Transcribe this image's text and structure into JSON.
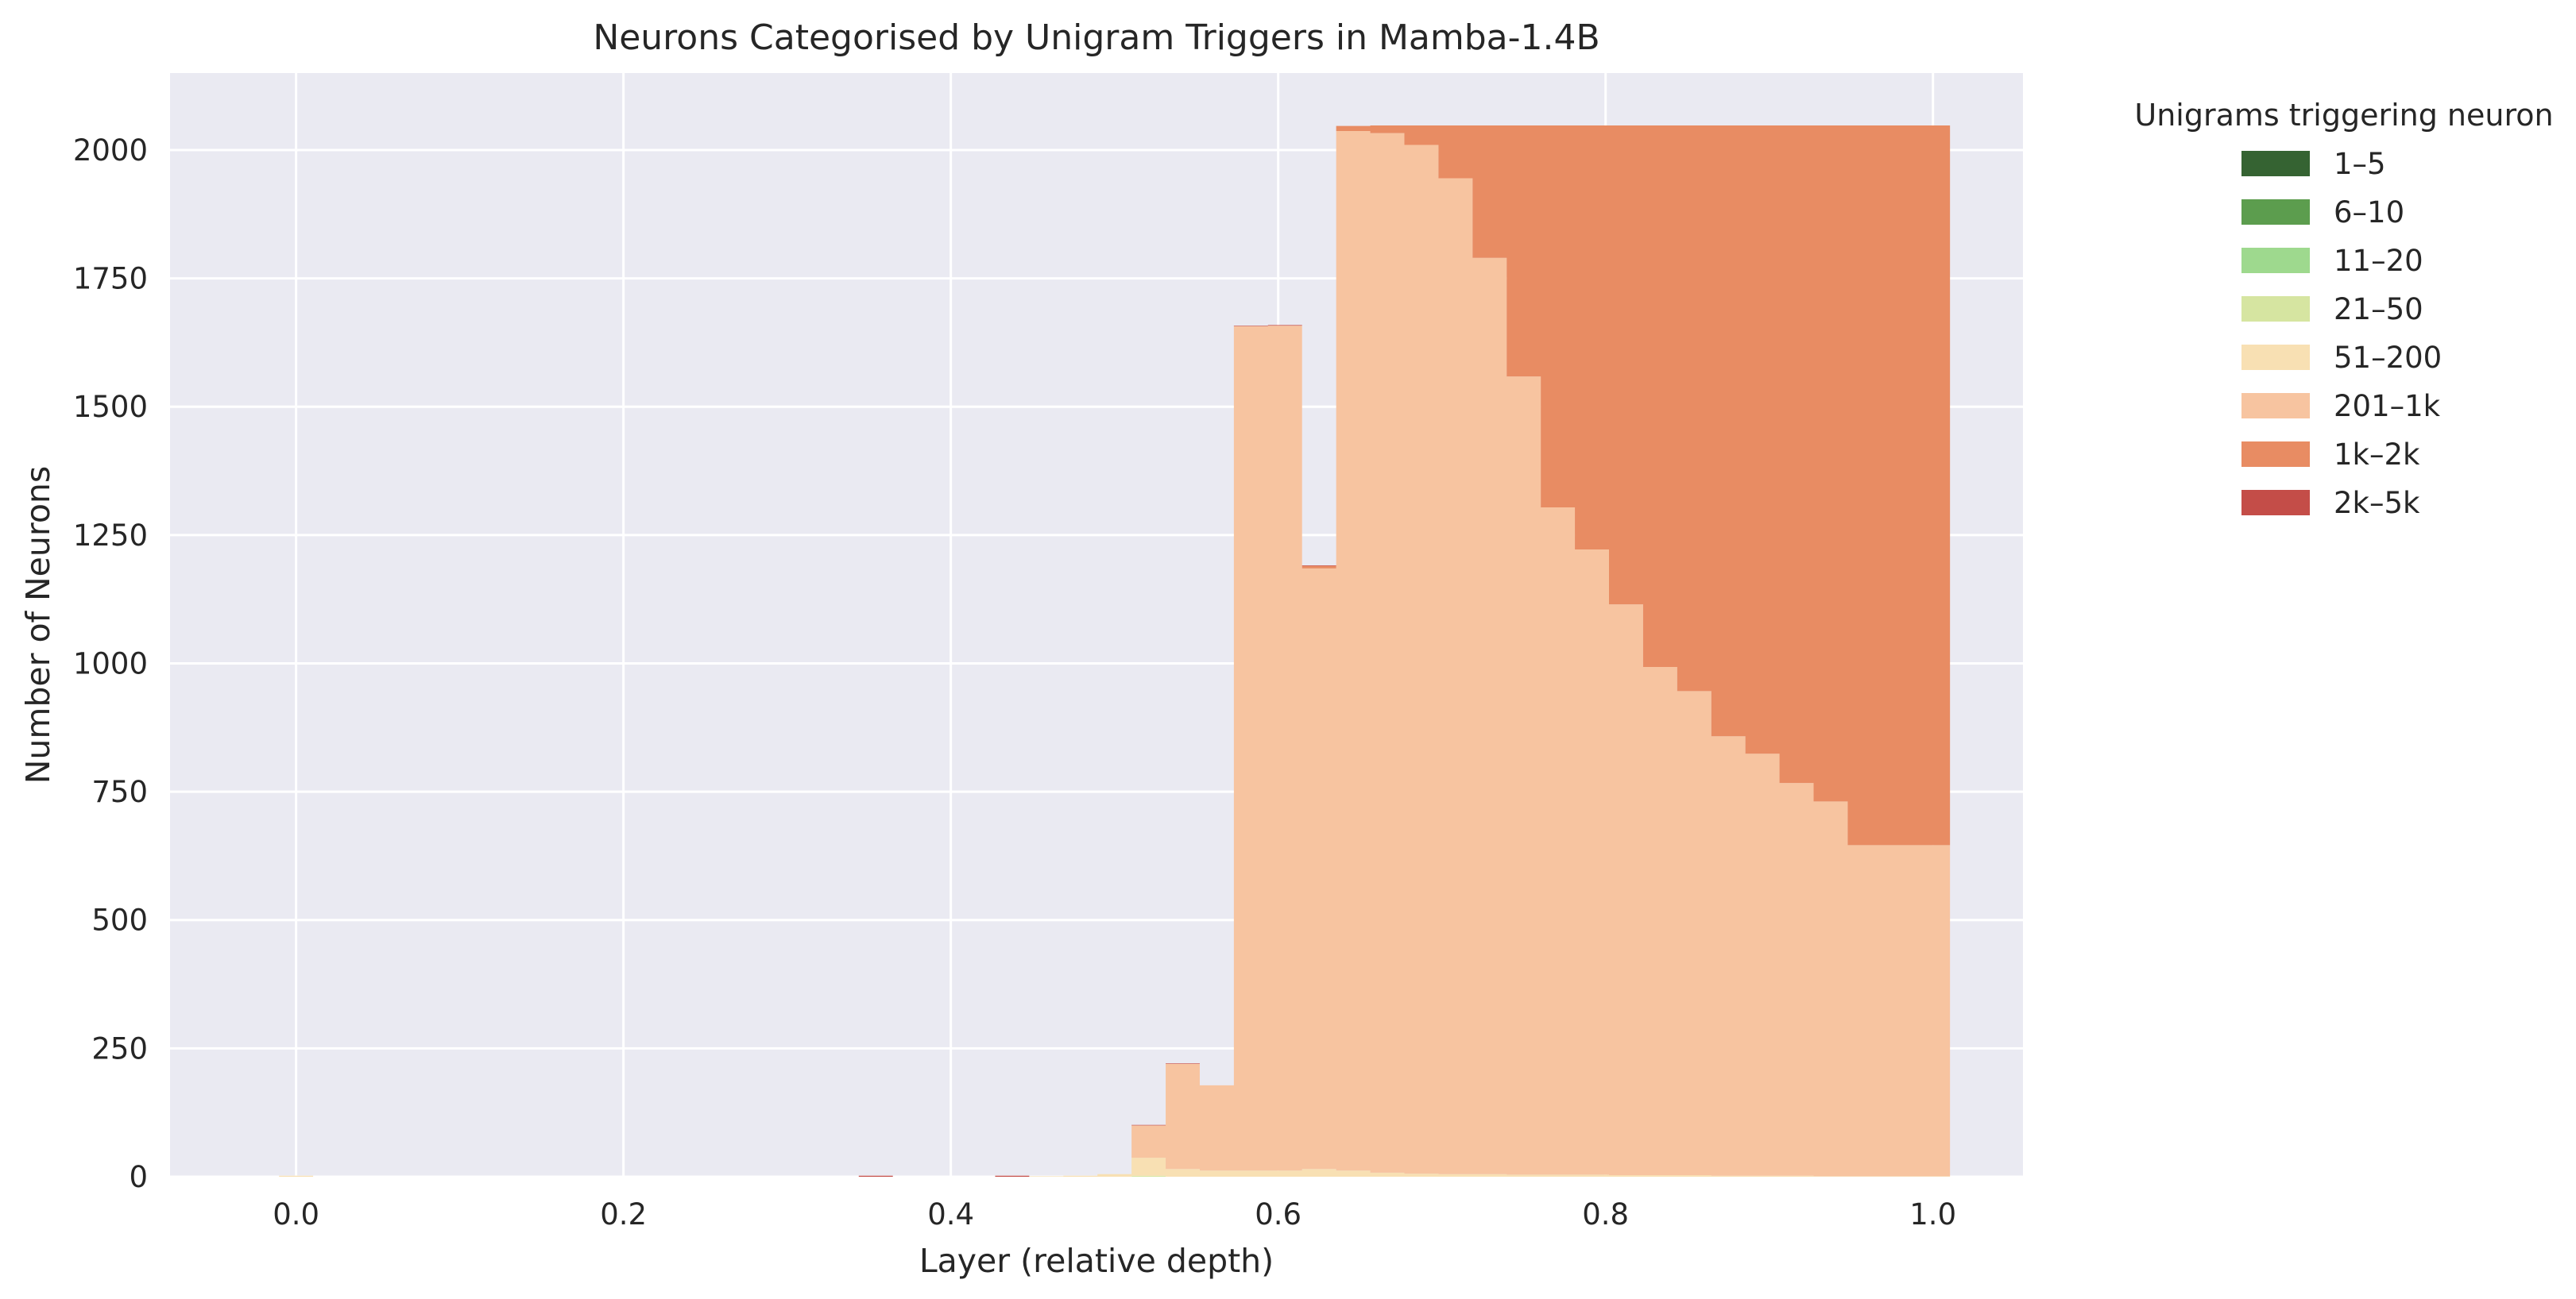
{
  "chart_data": {
    "type": "area",
    "title": "Neurons Categorised by Unigram Triggers in Mamba-1.4B",
    "xlabel": "Layer (relative depth)",
    "ylabel": "Number of Neurons",
    "xlim": [
      -0.077,
      1.055
    ],
    "ylim": [
      0,
      2150
    ],
    "xticks": [
      0.0,
      0.2,
      0.4,
      0.6,
      0.8,
      1.0
    ],
    "xtick_labels": [
      "0.0",
      "0.2",
      "0.4",
      "0.6",
      "0.8",
      "1.0"
    ],
    "yticks": [
      0,
      250,
      500,
      750,
      1000,
      1250,
      1500,
      1750,
      2000
    ],
    "ytick_labels": [
      "0",
      "250",
      "500",
      "750",
      "1000",
      "1250",
      "1500",
      "1750",
      "2000"
    ],
    "grid": true,
    "stacked": true,
    "step": true,
    "x": [
      0.0,
      0.020833,
      0.041667,
      0.0625,
      0.083333,
      0.104167,
      0.125,
      0.145833,
      0.166667,
      0.1875,
      0.208333,
      0.229167,
      0.25,
      0.270833,
      0.291667,
      0.3125,
      0.333333,
      0.354167,
      0.375,
      0.395833,
      0.416667,
      0.4375,
      0.458333,
      0.479167,
      0.5,
      0.520833,
      0.541667,
      0.5625,
      0.583333,
      0.604167,
      0.625,
      0.645833,
      0.666667,
      0.6875,
      0.708333,
      0.729167,
      0.75,
      0.770833,
      0.791667,
      0.8125,
      0.833333,
      0.854167,
      0.875,
      0.895833,
      0.916667,
      0.9375,
      0.958333,
      0.979167,
      1.0
    ],
    "legend": {
      "title": "Unigrams triggering neuron",
      "placement": "outside-right"
    },
    "colors": [
      "#356332",
      "#5c9d4e",
      "#9ed98e",
      "#d6e5a1",
      "#f8e0b3",
      "#f7c4a0",
      "#e88c63",
      "#c44d48"
    ],
    "series": [
      {
        "name": "1–5",
        "values": [
          0,
          0,
          0,
          0,
          0,
          0,
          0,
          0,
          0,
          0,
          0,
          0,
          0,
          0,
          0,
          0,
          0,
          0,
          0,
          0,
          0,
          0,
          0,
          0,
          0,
          0,
          0,
          0,
          0,
          0,
          0,
          0,
          0,
          0,
          0,
          0,
          0,
          0,
          0,
          0,
          0,
          0,
          0,
          0,
          0,
          0,
          0,
          0,
          0
        ]
      },
      {
        "name": "6–10",
        "values": [
          0,
          0,
          0,
          0,
          0,
          0,
          0,
          0,
          0,
          0,
          0,
          0,
          0,
          0,
          0,
          0,
          0,
          0,
          0,
          0,
          0,
          0,
          0,
          0,
          0,
          0,
          0,
          0,
          0,
          0,
          0,
          0,
          0,
          0,
          0,
          0,
          0,
          0,
          0,
          0,
          0,
          0,
          0,
          0,
          0,
          0,
          0,
          0,
          0
        ]
      },
      {
        "name": "11–20",
        "values": [
          0,
          0,
          0,
          0,
          0,
          0,
          0,
          0,
          0,
          0,
          0,
          0,
          0,
          0,
          0,
          0,
          0,
          0,
          0,
          0,
          0,
          0,
          0,
          0,
          0,
          0,
          0,
          0,
          0,
          0,
          0,
          0,
          0,
          0,
          0,
          0,
          0,
          0,
          0,
          0,
          0,
          0,
          0,
          0,
          0,
          0,
          0,
          0,
          0
        ]
      },
      {
        "name": "21–50",
        "values": [
          0,
          0,
          0,
          0,
          0,
          0,
          0,
          0,
          0,
          0,
          0,
          0,
          0,
          0,
          0,
          0,
          0,
          0,
          0,
          0,
          0,
          0,
          0,
          0,
          0,
          2,
          0,
          0,
          0,
          0,
          0,
          0,
          0,
          0,
          0,
          0,
          0,
          0,
          0,
          0,
          0,
          0,
          0,
          0,
          0,
          0,
          0,
          0,
          0
        ]
      },
      {
        "name": "51–200",
        "values": [
          2,
          0,
          0,
          0,
          0,
          0,
          0,
          0,
          0,
          0,
          0,
          0,
          0,
          0,
          0,
          0,
          0,
          0,
          0,
          0,
          0,
          0,
          1,
          2,
          5,
          35,
          15,
          12,
          12,
          12,
          15,
          12,
          8,
          6,
          5,
          5,
          4,
          4,
          4,
          3,
          3,
          3,
          2,
          2,
          2,
          1,
          1,
          1,
          1
        ]
      },
      {
        "name": "201–1k",
        "values": [
          0,
          0,
          0,
          0,
          0,
          0,
          0,
          0,
          0,
          0,
          0,
          0,
          0,
          0,
          0,
          0,
          0,
          0,
          0,
          0,
          0,
          0,
          0,
          0,
          0,
          63,
          205,
          166,
          1645,
          1646,
          1170,
          2025,
          2025,
          2004,
          1940,
          1785,
          1555,
          1300,
          1218,
          1112,
          990,
          943,
          856,
          822,
          765,
          730,
          645,
          645,
          645
        ]
      },
      {
        "name": "1k–2k",
        "values": [
          0,
          0,
          0,
          0,
          0,
          0,
          0,
          0,
          0,
          0,
          0,
          0,
          0,
          0,
          0,
          0,
          0,
          0,
          0,
          0,
          0,
          0,
          0,
          0,
          0,
          0,
          0,
          0,
          0,
          0,
          5,
          10,
          15,
          38,
          103,
          258,
          489,
          744,
          826,
          933,
          1055,
          1102,
          1190,
          1224,
          1281,
          1317,
          1402,
          1402,
          1402
        ]
      },
      {
        "name": "2k–5k",
        "values": [
          0,
          0,
          0,
          0,
          0,
          0,
          0,
          0,
          0,
          0,
          0,
          0,
          0,
          0,
          0,
          0,
          0,
          2,
          0,
          0,
          0,
          2,
          0,
          0,
          0,
          1,
          1,
          0,
          1,
          1,
          1,
          0,
          0,
          0,
          0,
          0,
          0,
          0,
          0,
          0,
          0,
          0,
          0,
          0,
          0,
          0,
          0,
          0,
          0
        ]
      }
    ]
  }
}
